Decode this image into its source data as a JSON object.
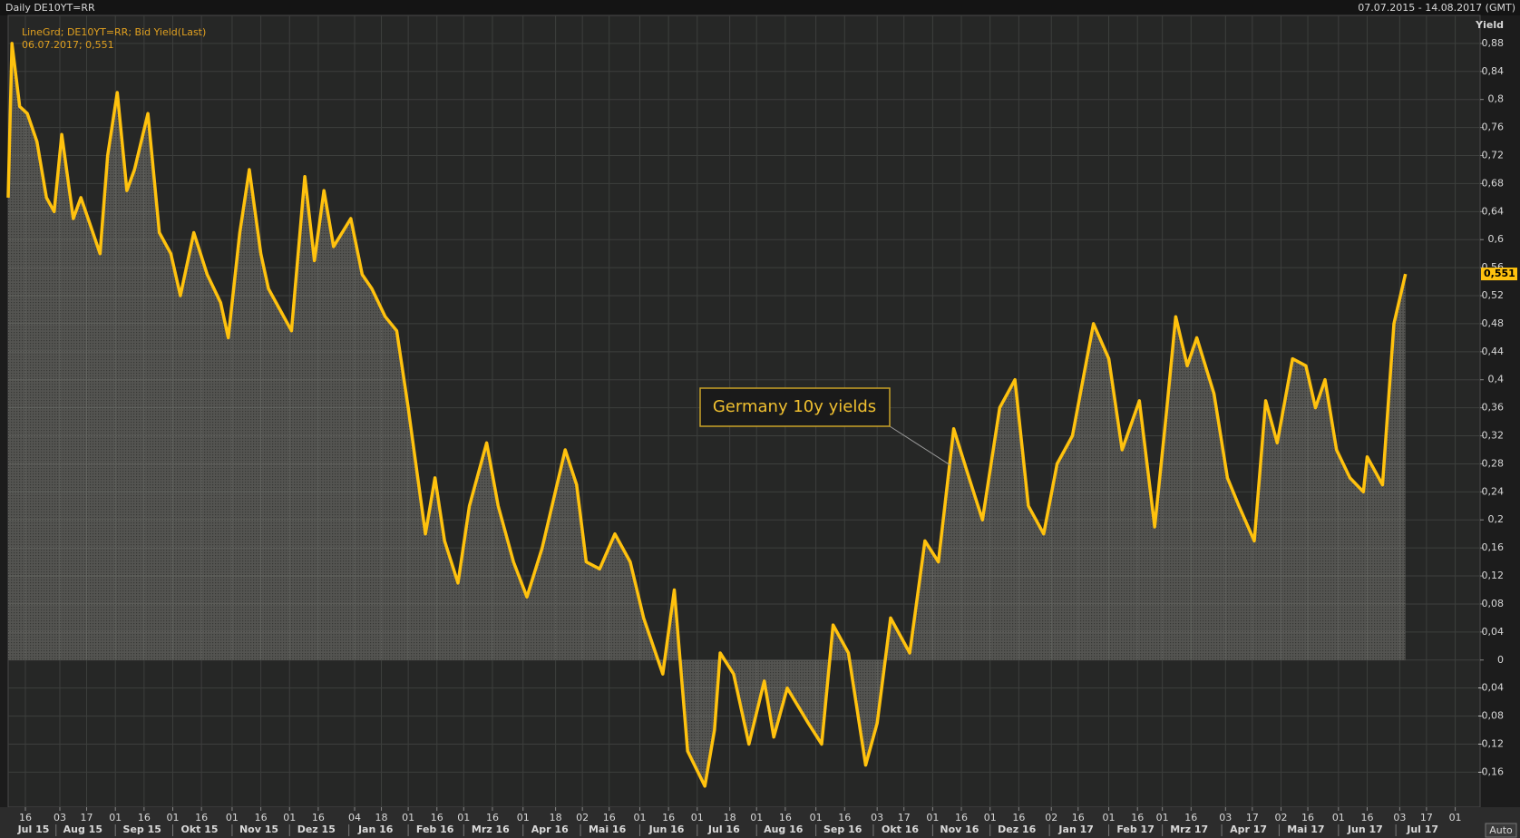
{
  "header": {
    "title": "Daily DE10YT=RR",
    "range": "07.07.2015 - 14.08.2017 (GMT)",
    "button": "Auto"
  },
  "chart_data": {
    "type": "area-line",
    "y_axis_label": "Yield",
    "legend_detail": "06.07.2017; 0,551",
    "last_value_label": "0,551",
    "annotation": "Germany 10y yields",
    "grid": true,
    "xlim": [
      "2015-07-07",
      "2017-08-14"
    ],
    "ylim": [
      -0.21,
      0.92
    ],
    "yticks": [
      {
        "value": -0.16,
        "label": "-0,16"
      },
      {
        "value": -0.12,
        "label": "-0,12"
      },
      {
        "value": -0.08,
        "label": "-0,08"
      },
      {
        "value": -0.04,
        "label": "-0,04"
      },
      0,
      {
        "value": 0.04,
        "label": "0,04"
      },
      {
        "value": 0.08,
        "label": "0,08"
      },
      {
        "value": 0.12,
        "label": "0,12"
      },
      {
        "value": 0.16,
        "label": "0,16"
      },
      {
        "value": 0.2,
        "label": "0,2"
      },
      {
        "value": 0.24,
        "label": "0,24"
      },
      {
        "value": 0.28,
        "label": "0,28"
      },
      {
        "value": 0.32,
        "label": "0,32"
      },
      {
        "value": 0.36,
        "label": "0,36"
      },
      {
        "value": 0.4,
        "label": "0,4"
      },
      {
        "value": 0.44,
        "label": "0,44"
      },
      {
        "value": 0.48,
        "label": "0,48"
      },
      {
        "value": 0.52,
        "label": "0,52"
      },
      {
        "value": 0.56,
        "label": "0,56"
      },
      {
        "value": 0.6,
        "label": "0,6"
      },
      {
        "value": 0.64,
        "label": "0,64"
      },
      {
        "value": 0.68,
        "label": "0,68"
      },
      {
        "value": 0.72,
        "label": "0,72"
      },
      {
        "value": 0.76,
        "label": "0,76"
      },
      {
        "value": 0.8,
        "label": "0,8"
      },
      {
        "value": 0.84,
        "label": "0,84"
      },
      {
        "value": 0.88,
        "label": "0,88"
      }
    ],
    "xticks": [
      {
        "value": "2015-07-16",
        "label": "16"
      },
      {
        "value": "2015-08-03",
        "label": "03"
      },
      {
        "value": "2015-08-17",
        "label": "17"
      },
      {
        "value": "2015-09-01",
        "label": "01"
      },
      {
        "value": "2015-09-16",
        "label": "16"
      },
      {
        "value": "2015-10-01",
        "label": "01"
      },
      {
        "value": "2015-10-16",
        "label": "16"
      },
      {
        "value": "2015-11-01",
        "label": "01"
      },
      {
        "value": "2015-11-16",
        "label": "16"
      },
      {
        "value": "2015-12-01",
        "label": "01"
      },
      {
        "value": "2015-12-16",
        "label": "16"
      },
      {
        "value": "2016-01-04",
        "label": "04"
      },
      {
        "value": "2016-01-18",
        "label": "18"
      },
      {
        "value": "2016-02-01",
        "label": "01"
      },
      {
        "value": "2016-02-16",
        "label": "16"
      },
      {
        "value": "2016-03-01",
        "label": "01"
      },
      {
        "value": "2016-03-16",
        "label": "16"
      },
      {
        "value": "2016-04-01",
        "label": "01"
      },
      {
        "value": "2016-04-18",
        "label": "18"
      },
      {
        "value": "2016-05-02",
        "label": "02"
      },
      {
        "value": "2016-05-16",
        "label": "16"
      },
      {
        "value": "2016-06-01",
        "label": "01"
      },
      {
        "value": "2016-06-16",
        "label": "16"
      },
      {
        "value": "2016-07-01",
        "label": "01"
      },
      {
        "value": "2016-07-18",
        "label": "18"
      },
      {
        "value": "2016-08-01",
        "label": "01"
      },
      {
        "value": "2016-08-16",
        "label": "16"
      },
      {
        "value": "2016-09-01",
        "label": "01"
      },
      {
        "value": "2016-09-16",
        "label": "16"
      },
      {
        "value": "2016-10-03",
        "label": "03"
      },
      {
        "value": "2016-10-17",
        "label": "17"
      },
      {
        "value": "2016-11-01",
        "label": "01"
      },
      {
        "value": "2016-11-16",
        "label": "16"
      },
      {
        "value": "2016-12-01",
        "label": "01"
      },
      {
        "value": "2016-12-16",
        "label": "16"
      },
      {
        "value": "2017-01-02",
        "label": "02"
      },
      {
        "value": "2017-01-16",
        "label": "16"
      },
      {
        "value": "2017-02-01",
        "label": "01"
      },
      {
        "value": "2017-02-16",
        "label": "16"
      },
      {
        "value": "2017-03-01",
        "label": "01"
      },
      {
        "value": "2017-03-16",
        "label": "16"
      },
      {
        "value": "2017-04-03",
        "label": "03"
      },
      {
        "value": "2017-04-17",
        "label": "17"
      },
      {
        "value": "2017-05-02",
        "label": "02"
      },
      {
        "value": "2017-05-16",
        "label": "16"
      },
      {
        "value": "2017-06-01",
        "label": "01"
      },
      {
        "value": "2017-06-16",
        "label": "16"
      },
      {
        "value": "2017-07-03",
        "label": "03"
      },
      {
        "value": "2017-07-17",
        "label": "17"
      },
      {
        "value": "2017-08-01",
        "label": "01"
      }
    ],
    "month_labels": [
      {
        "value": "2015-07",
        "label": "Jul 15"
      },
      {
        "value": "2015-08",
        "label": "Aug 15"
      },
      {
        "value": "2015-09",
        "label": "Sep 15"
      },
      {
        "value": "2015-10",
        "label": "Okt 15"
      },
      {
        "value": "2015-11",
        "label": "Nov 15"
      },
      {
        "value": "2015-12",
        "label": "Dez 15"
      },
      {
        "value": "2016-01",
        "label": "Jan 16"
      },
      {
        "value": "2016-02",
        "label": "Feb 16"
      },
      {
        "value": "2016-03",
        "label": "Mrz 16"
      },
      {
        "value": "2016-04",
        "label": "Apr 16"
      },
      {
        "value": "2016-05",
        "label": "Mai 16"
      },
      {
        "value": "2016-06",
        "label": "Jun 16"
      },
      {
        "value": "2016-07",
        "label": "Jul 16"
      },
      {
        "value": "2016-08",
        "label": "Aug 16"
      },
      {
        "value": "2016-09",
        "label": "Sep 16"
      },
      {
        "value": "2016-10",
        "label": "Okt 16"
      },
      {
        "value": "2016-11",
        "label": "Nov 16"
      },
      {
        "value": "2016-12",
        "label": "Dez 16"
      },
      {
        "value": "2017-01",
        "label": "Jan 17"
      },
      {
        "value": "2017-02",
        "label": "Feb 17"
      },
      {
        "value": "2017-03",
        "label": "Mrz 17"
      },
      {
        "value": "2017-04",
        "label": "Apr 17"
      },
      {
        "value": "2017-05",
        "label": "Mai 17"
      },
      {
        "value": "2017-06",
        "label": "Jun 17"
      },
      {
        "value": "2017-07",
        "label": "Jul 17"
      }
    ],
    "x": [
      "2015-07-07",
      "2015-07-09",
      "2015-07-13",
      "2015-07-17",
      "2015-07-22",
      "2015-07-27",
      "2015-07-31",
      "2015-08-04",
      "2015-08-10",
      "2015-08-14",
      "2015-08-19",
      "2015-08-24",
      "2015-08-28",
      "2015-09-02",
      "2015-09-07",
      "2015-09-11",
      "2015-09-18",
      "2015-09-24",
      "2015-09-30",
      "2015-10-05",
      "2015-10-12",
      "2015-10-19",
      "2015-10-26",
      "2015-10-30",
      "2015-11-05",
      "2015-11-10",
      "2015-11-16",
      "2015-11-20",
      "2015-11-26",
      "2015-12-02",
      "2015-12-09",
      "2015-12-14",
      "2015-12-19",
      "2015-12-24",
      "2016-01-02",
      "2016-01-08",
      "2016-01-13",
      "2016-01-20",
      "2016-01-26",
      "2016-02-01",
      "2016-02-04",
      "2016-02-10",
      "2016-02-15",
      "2016-02-20",
      "2016-02-27",
      "2016-03-04",
      "2016-03-13",
      "2016-03-19",
      "2016-03-27",
      "2016-04-03",
      "2016-04-11",
      "2016-04-23",
      "2016-04-29",
      "2016-05-04",
      "2016-05-11",
      "2016-05-19",
      "2016-05-27",
      "2016-06-03",
      "2016-06-13",
      "2016-06-19",
      "2016-06-26",
      "2016-07-05",
      "2016-07-10",
      "2016-07-13",
      "2016-07-20",
      "2016-07-28",
      "2016-08-05",
      "2016-08-10",
      "2016-08-17",
      "2016-08-28",
      "2016-09-04",
      "2016-09-10",
      "2016-09-18",
      "2016-09-27",
      "2016-10-03",
      "2016-10-10",
      "2016-10-20",
      "2016-10-28",
      "2016-11-04",
      "2016-11-12",
      "2016-11-20",
      "2016-11-27",
      "2016-12-06",
      "2016-12-14",
      "2016-12-21",
      "2016-12-29",
      "2017-01-05",
      "2017-01-13",
      "2017-01-24",
      "2017-02-01",
      "2017-02-08",
      "2017-02-17",
      "2017-02-25",
      "2017-03-03",
      "2017-03-08",
      "2017-03-14",
      "2017-03-19",
      "2017-03-28",
      "2017-04-04",
      "2017-04-10",
      "2017-04-18",
      "2017-04-24",
      "2017-04-30",
      "2017-05-08",
      "2017-05-15",
      "2017-05-20",
      "2017-05-25",
      "2017-05-31",
      "2017-06-07",
      "2017-06-14",
      "2017-06-16",
      "2017-06-24",
      "2017-06-30",
      "2017-07-06"
    ],
    "series": [
      {
        "name": "LineGrd; DE10YT=RR; Bid Yield(Last)",
        "color": "#ffc20e",
        "values": [
          0.66,
          0.88,
          0.79,
          0.78,
          0.74,
          0.66,
          0.64,
          0.75,
          0.63,
          0.66,
          0.62,
          0.58,
          0.72,
          0.81,
          0.67,
          0.7,
          0.78,
          0.61,
          0.58,
          0.52,
          0.61,
          0.55,
          0.51,
          0.46,
          0.61,
          0.7,
          0.58,
          0.53,
          0.5,
          0.47,
          0.69,
          0.57,
          0.67,
          0.59,
          0.63,
          0.55,
          0.53,
          0.49,
          0.47,
          0.36,
          0.3,
          0.18,
          0.26,
          0.17,
          0.11,
          0.22,
          0.31,
          0.22,
          0.14,
          0.09,
          0.16,
          0.3,
          0.25,
          0.14,
          0.13,
          0.18,
          0.14,
          0.06,
          -0.02,
          0.1,
          -0.13,
          -0.18,
          -0.1,
          0.01,
          -0.02,
          -0.12,
          -0.03,
          -0.11,
          -0.04,
          -0.09,
          -0.12,
          0.05,
          0.01,
          -0.15,
          -0.09,
          0.06,
          0.01,
          0.17,
          0.14,
          0.33,
          0.26,
          0.2,
          0.36,
          0.4,
          0.22,
          0.18,
          0.28,
          0.32,
          0.48,
          0.43,
          0.3,
          0.37,
          0.19,
          0.35,
          0.49,
          0.42,
          0.46,
          0.38,
          0.26,
          0.22,
          0.17,
          0.37,
          0.31,
          0.43,
          0.42,
          0.36,
          0.4,
          0.3,
          0.26,
          0.24,
          0.29,
          0.25,
          0.48,
          0.551
        ]
      }
    ]
  }
}
